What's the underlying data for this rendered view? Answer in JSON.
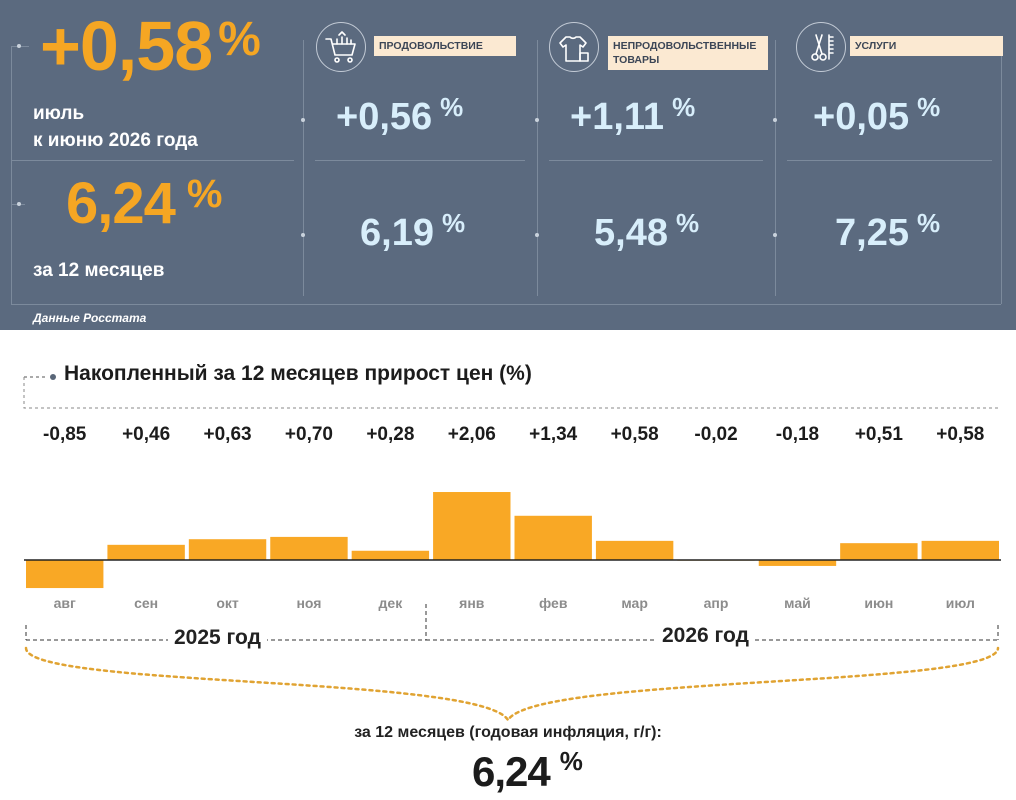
{
  "summary": {
    "monthly_value": "+0,58",
    "monthly_unit": "%",
    "monthly_label_line1": "июль",
    "monthly_label_line2": "к июню 2026 года",
    "annual_value": "6,24",
    "annual_unit": "%",
    "annual_label": "за 12 месяцев",
    "source": "Данные Росстата"
  },
  "categories": [
    {
      "icon": "shopping-cart-icon",
      "label": "ПРОДОВОЛЬСТВИЕ",
      "monthly": "+0,56",
      "annual": "6,19",
      "unit": "%"
    },
    {
      "icon": "clothing-icon",
      "label": "НЕПРОДОВОЛЬСТВЕННЫЕ ТОВАРЫ",
      "monthly": "+1,11",
      "annual": "5,48",
      "unit": "%"
    },
    {
      "icon": "scissors-comb-icon",
      "label": "УСЛУГИ",
      "monthly": "+0,05",
      "annual": "7,25",
      "unit": "%"
    }
  ],
  "colors": {
    "panel": "#5b6a7f",
    "accent": "#f5a623",
    "value_text": "#d8eefb",
    "label_bg": "#fbe9d2"
  },
  "chart_data": {
    "type": "bar",
    "title": "Накопленный за 12 месяцев прирост цен (%)",
    "categories": [
      "авг",
      "сен",
      "окт",
      "ноя",
      "дек",
      "янв",
      "фев",
      "мар",
      "апр",
      "май",
      "июн",
      "июл"
    ],
    "values": [
      -0.85,
      0.46,
      0.63,
      0.7,
      0.28,
      2.06,
      1.34,
      0.58,
      -0.02,
      -0.18,
      0.51,
      0.58
    ],
    "value_labels": [
      "-0,85",
      "+0,46",
      "+0,63",
      "+0,70",
      "+0,28",
      "+2,06",
      "+1,34",
      "+0,58",
      "-0,02",
      "-0,18",
      "+0,51",
      "+0,58"
    ],
    "groups": [
      {
        "label": "2025 год",
        "from": 0,
        "to": 4
      },
      {
        "label": "2026 год",
        "from": 5,
        "to": 11
      }
    ],
    "bar_color": "#f9a825",
    "grid": false
  },
  "annual_total": {
    "caption": "за 12 месяцев (годовая инфляция, г/г):",
    "value": "6,24",
    "unit": "%"
  }
}
